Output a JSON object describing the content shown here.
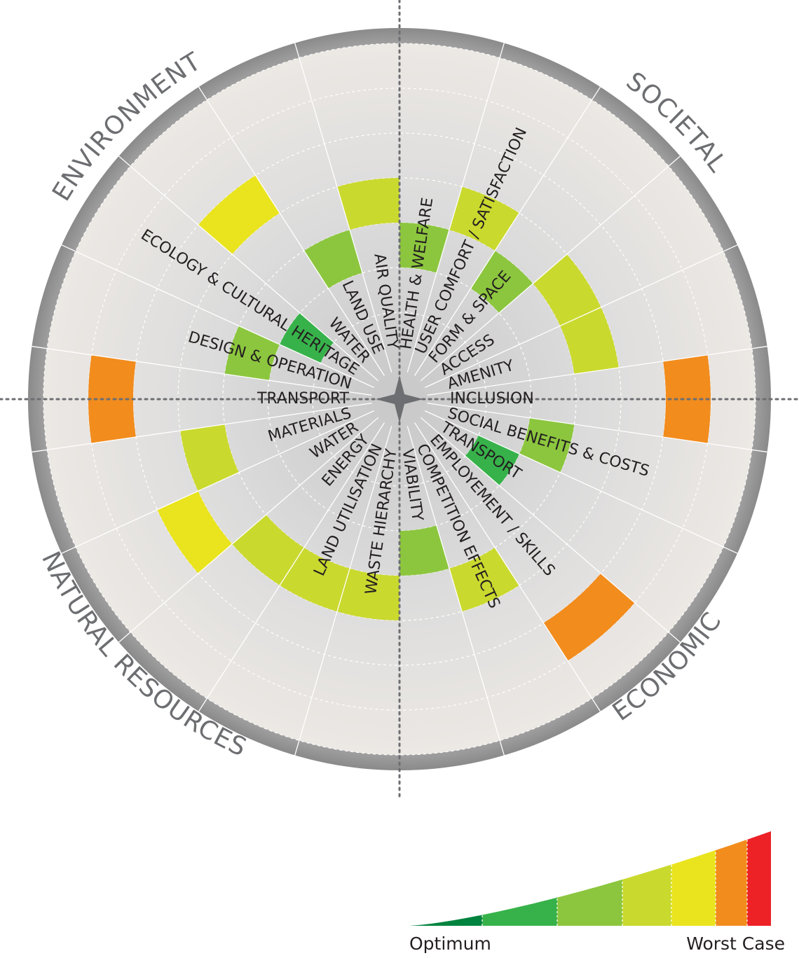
{
  "chart_data": {
    "type": "radial-bar",
    "scale": {
      "description": "band index 1 = Optimum (center) ... 7 = Worst Case (edge)",
      "levels": 7,
      "colors": [
        "#00833e",
        "#37b24a",
        "#8cc63e",
        "#cad92e",
        "#e9e41d",
        "#f28c1d",
        "#ec2227"
      ],
      "min_label": "Optimum",
      "max_label": "Worst Case"
    },
    "quadrants": [
      {
        "name": "ENVIRONMENT",
        "label": "ENVIRONMENT"
      },
      {
        "name": "SOCIETAL",
        "label": "SOCIETAL"
      },
      {
        "name": "ECONOMIC",
        "label": "ECONOMIC"
      },
      {
        "name": "NATURAL RESOURCES",
        "label": "NATURAL RESOURCES"
      }
    ],
    "categories": [
      {
        "label": "HEALTH & WELFARE",
        "quadrant": "SOCIETAL",
        "score": 3
      },
      {
        "label": "USER COMFORT / SATISFACTION",
        "quadrant": "SOCIETAL",
        "score": 4
      },
      {
        "label": "FORM & SPACE",
        "quadrant": "SOCIETAL",
        "score": 3
      },
      {
        "label": "ACCESS",
        "quadrant": "SOCIETAL",
        "score": 4
      },
      {
        "label": "AMENITY",
        "quadrant": "SOCIETAL",
        "score": 4
      },
      {
        "label": "INCLUSION",
        "quadrant": "SOCIETAL",
        "score": 6
      },
      {
        "label": "SOCIAL BENEFITS & COSTS",
        "quadrant": "ECONOMIC",
        "score": 3
      },
      {
        "label": "TRANSPORT",
        "quadrant": "ECONOMIC",
        "score": 2
      },
      {
        "label": "EMPLOYEMENT / SKILLS",
        "quadrant": "ECONOMIC",
        "score": 6
      },
      {
        "label": "COMPETITION EFFECTS",
        "quadrant": "ECONOMIC",
        "score": 4
      },
      {
        "label": "VIABILITY",
        "quadrant": "ECONOMIC",
        "score": 3
      },
      {
        "label": "WASTE HIERARCHY",
        "quadrant": "NATURAL RESOURCES",
        "score": 4
      },
      {
        "label": "LAND UTILISATION",
        "quadrant": "NATURAL RESOURCES",
        "score": 4
      },
      {
        "label": "ENERGY",
        "quadrant": "NATURAL RESOURCES",
        "score": 4
      },
      {
        "label": "WATER",
        "quadrant": "NATURAL RESOURCES",
        "score": 5
      },
      {
        "label": "MATERIALS",
        "quadrant": "NATURAL RESOURCES",
        "score": 4
      },
      {
        "label": "TRANSPORT",
        "quadrant": "ENVIRONMENT",
        "score": 6
      },
      {
        "label": "DESIGN & OPERATION",
        "quadrant": "ENVIRONMENT",
        "score": 3
      },
      {
        "label": "ECOLOGY & CULTURAL HERITAGE",
        "quadrant": "ENVIRONMENT",
        "score": 2
      },
      {
        "label": "WATER",
        "quadrant": "ENVIRONMENT",
        "score": 5
      },
      {
        "label": "LAND USE",
        "quadrant": "ENVIRONMENT",
        "score": 3
      },
      {
        "label": "AIR QUALITY",
        "quadrant": "ENVIRONMENT",
        "score": 4
      }
    ]
  }
}
